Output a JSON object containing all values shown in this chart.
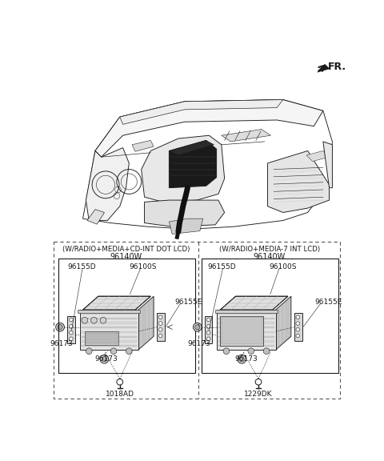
{
  "bg_color": "#ffffff",
  "line_color": "#1a1a1a",
  "gray_light": "#d8d8d8",
  "gray_med": "#b0b0b0",
  "gray_dark": "#888888",
  "dashed_color": "#555555",
  "fr_label": "FR.",
  "left_box_title": "(W/RADIO+MEDIA+CD-INT DOT LCD)",
  "left_box_part": "96140W",
  "right_box_title": "(W/RADIO+MEDIA-7 INT LCD)",
  "right_box_part": "96140W"
}
